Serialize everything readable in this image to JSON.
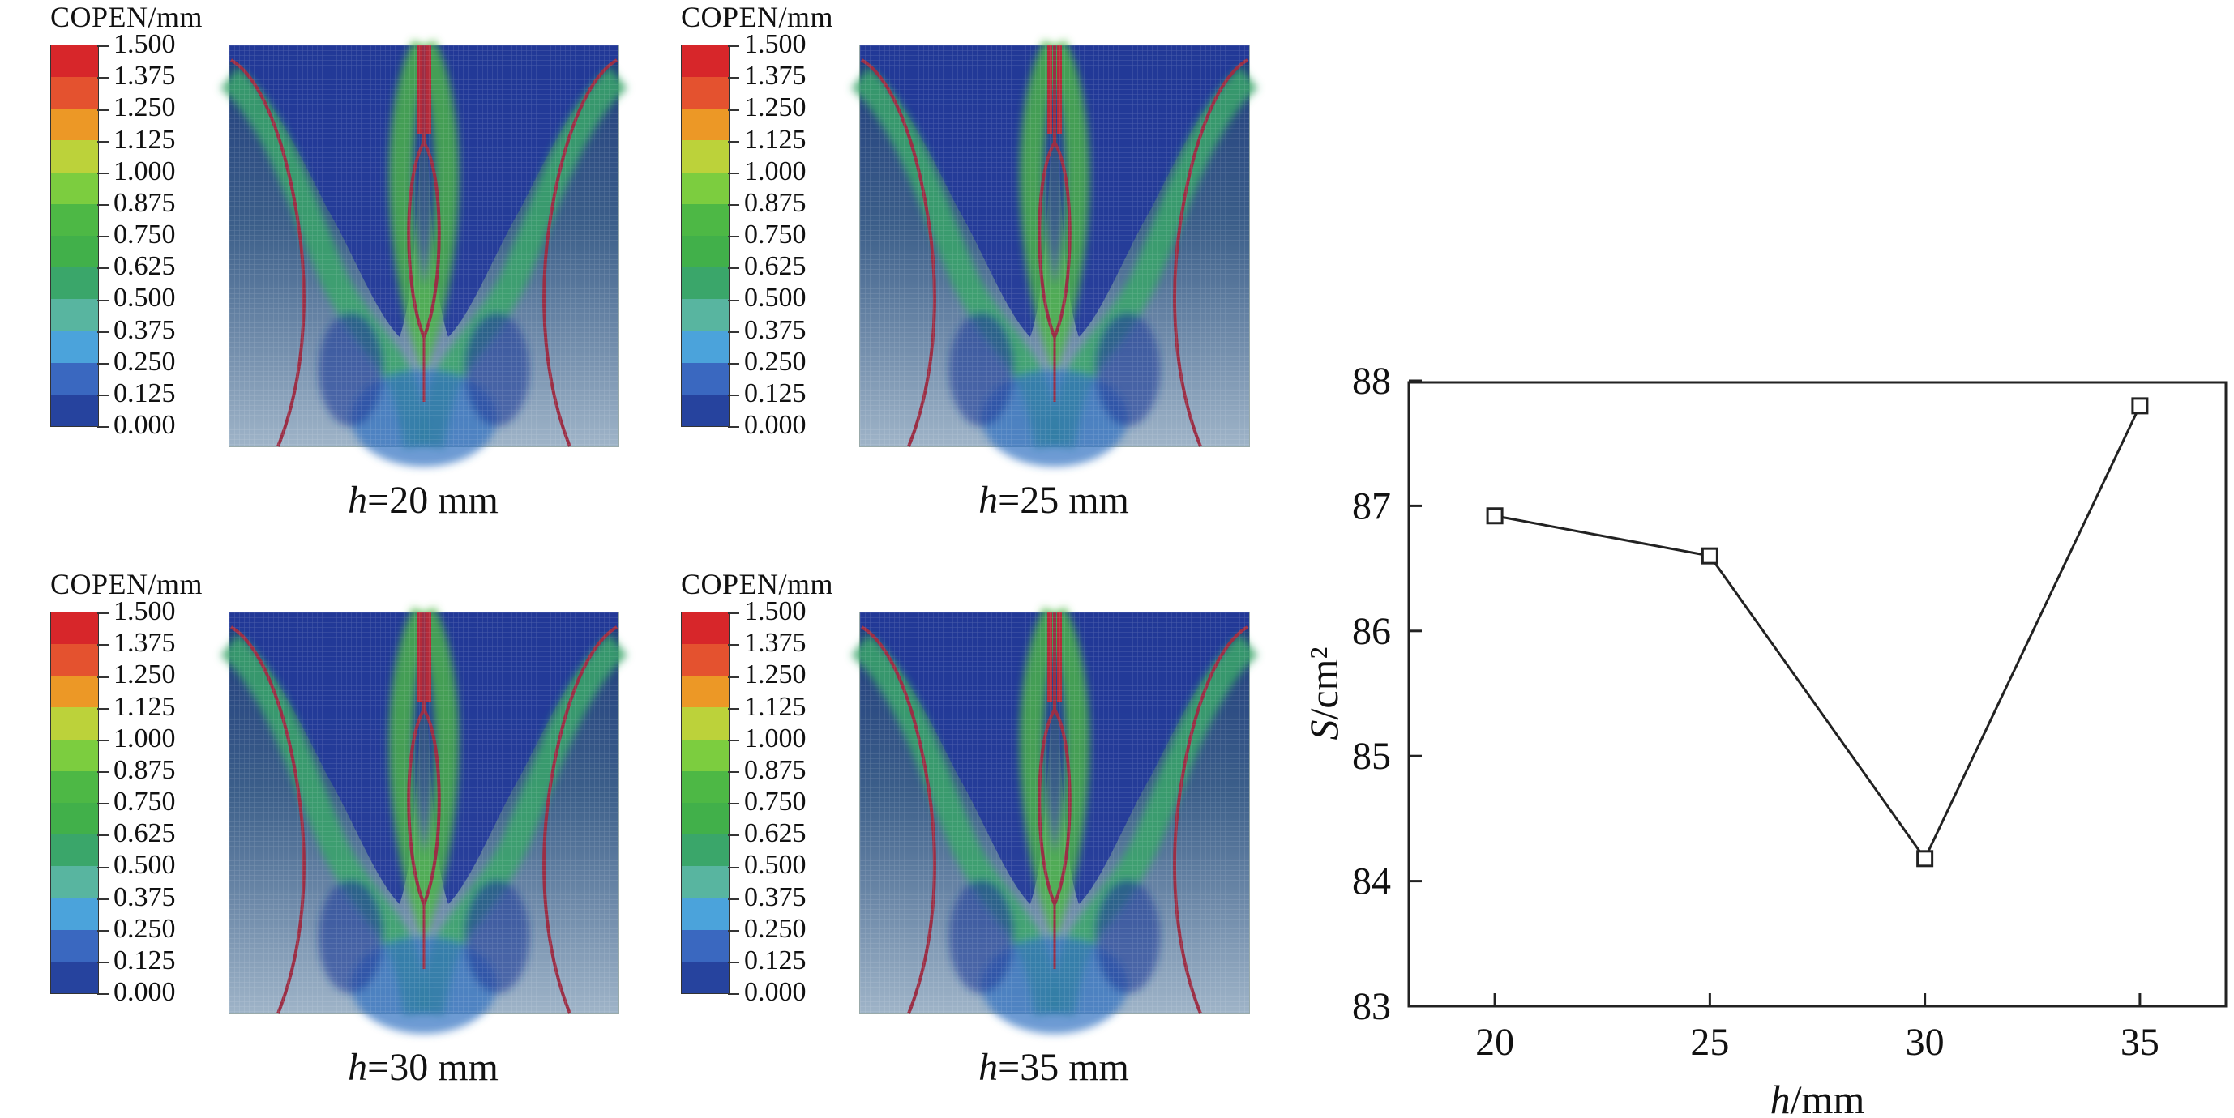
{
  "contours": {
    "legend_title": "COPEN/mm",
    "legend_ticks": [
      "1.500",
      "1.375",
      "1.250",
      "1.125",
      "1.000",
      "0.875",
      "0.750",
      "0.625",
      "0.500",
      "0.375",
      "0.250",
      "0.125",
      "0.000"
    ],
    "legend_colors": [
      "#d7262a",
      "#e4522f",
      "#ec9826",
      "#bcd23a",
      "#7ccd3f",
      "#4db845",
      "#41b04a",
      "#3aa66a",
      "#58b5a0",
      "#4ba3db",
      "#3a68c0",
      "#26439e"
    ],
    "captions": [
      {
        "var": "h",
        "text": "=20 mm"
      },
      {
        "var": "h",
        "text": "=25 mm"
      },
      {
        "var": "h",
        "text": "=30 mm"
      },
      {
        "var": "h",
        "text": "=35 mm"
      }
    ]
  },
  "chart_data": {
    "type": "line",
    "x": [
      20,
      25,
      30,
      35
    ],
    "series": [
      {
        "values": [
          86.92,
          86.6,
          84.18,
          87.8
        ]
      }
    ],
    "xlabel_var": "h",
    "xlabel_unit": "/mm",
    "ylabel_var": "S",
    "ylabel_unit": "/cm²",
    "xticks": [
      "20",
      "25",
      "30",
      "35"
    ],
    "yticks": [
      "83",
      "84",
      "85",
      "86",
      "87",
      "88"
    ],
    "xlim": [
      18,
      37
    ],
    "ylim": [
      83,
      88
    ],
    "marker": "square",
    "grid": false
  }
}
